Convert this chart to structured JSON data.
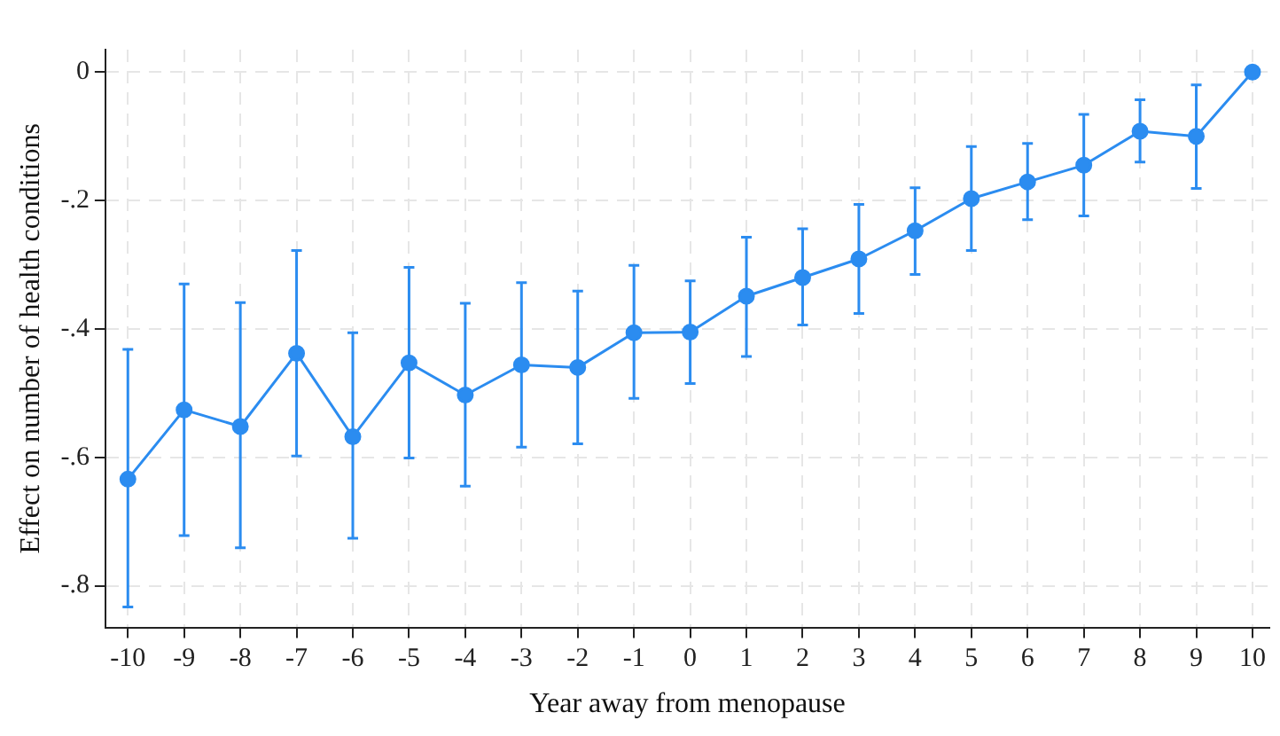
{
  "chart_data": {
    "type": "line",
    "xlabel": "Year away from menopause",
    "ylabel": "Effect on number of health conditions",
    "x": [
      -10,
      -9,
      -8,
      -7,
      -6,
      -5,
      -4,
      -3,
      -2,
      -1,
      0,
      1,
      2,
      3,
      4,
      5,
      6,
      7,
      8,
      9,
      10
    ],
    "series": [
      {
        "color": "#2b8cf0",
        "values": [
          -0.634,
          -0.526,
          -0.552,
          -0.438,
          -0.568,
          -0.453,
          -0.503,
          -0.456,
          -0.46,
          -0.406,
          -0.405,
          -0.349,
          -0.32,
          -0.291,
          -0.247,
          -0.197,
          -0.171,
          -0.145,
          -0.092,
          -0.1,
          0
        ],
        "errors": [
          [
            -0.833,
            -0.432
          ],
          [
            -0.722,
            -0.33
          ],
          [
            -0.741,
            -0.359
          ],
          [
            -0.598,
            -0.278
          ],
          [
            -0.726,
            -0.406
          ],
          [
            -0.601,
            -0.304
          ],
          [
            -0.645,
            -0.36
          ],
          [
            -0.584,
            -0.328
          ],
          [
            -0.579,
            -0.341
          ],
          [
            -0.508,
            -0.301
          ],
          [
            -0.485,
            -0.325
          ],
          [
            -0.443,
            -0.257
          ],
          [
            -0.394,
            -0.244
          ],
          [
            -0.376,
            -0.206
          ],
          [
            -0.315,
            -0.18
          ],
          [
            -0.278,
            -0.116
          ],
          [
            -0.23,
            -0.111
          ],
          [
            -0.224,
            -0.066
          ],
          [
            -0.14,
            -0.043
          ],
          [
            -0.181,
            -0.02
          ],
          null
        ]
      }
    ],
    "xlim": [
      -10.4,
      10.3
    ],
    "ylim": [
      -0.865,
      0.035
    ],
    "xticks": [
      -10,
      -9,
      -8,
      -7,
      -6,
      -5,
      -4,
      -3,
      -2,
      -1,
      0,
      1,
      2,
      3,
      4,
      5,
      6,
      7,
      8,
      9,
      10
    ],
    "yticks": [
      {
        "value": -0.8,
        "label": "-.8"
      },
      {
        "value": -0.6,
        "label": "-.6"
      },
      {
        "value": -0.4,
        "label": "-.4"
      },
      {
        "value": -0.2,
        "label": "-.2"
      },
      0
    ],
    "grid": true,
    "legend": false,
    "marker": "circle",
    "line_style": "solid"
  }
}
